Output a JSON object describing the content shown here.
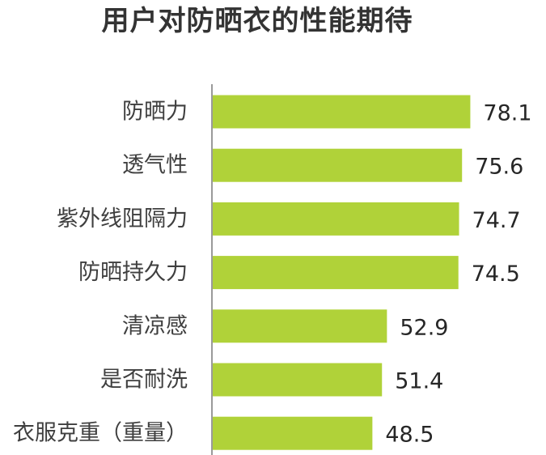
{
  "chart_data": {
    "type": "bar",
    "orientation": "horizontal",
    "title": "用户对防晒衣的性能期待",
    "categories": [
      "防晒力",
      "透气性",
      "紫外线阻隔力",
      "防晒持久力",
      "清凉感",
      "是否耐洗",
      "衣服克重（重量）"
    ],
    "values": [
      78.1,
      75.6,
      74.7,
      74.5,
      52.9,
      51.4,
      48.5
    ],
    "data_labels": [
      "78.1",
      "75.6",
      "74.7",
      "74.5",
      "52.9",
      "51.4",
      "48.5"
    ],
    "xlim": [
      0,
      100
    ],
    "grid": false,
    "legend": "none",
    "bar_color": "#b0d239",
    "axis_color": "#9a9a9a"
  }
}
